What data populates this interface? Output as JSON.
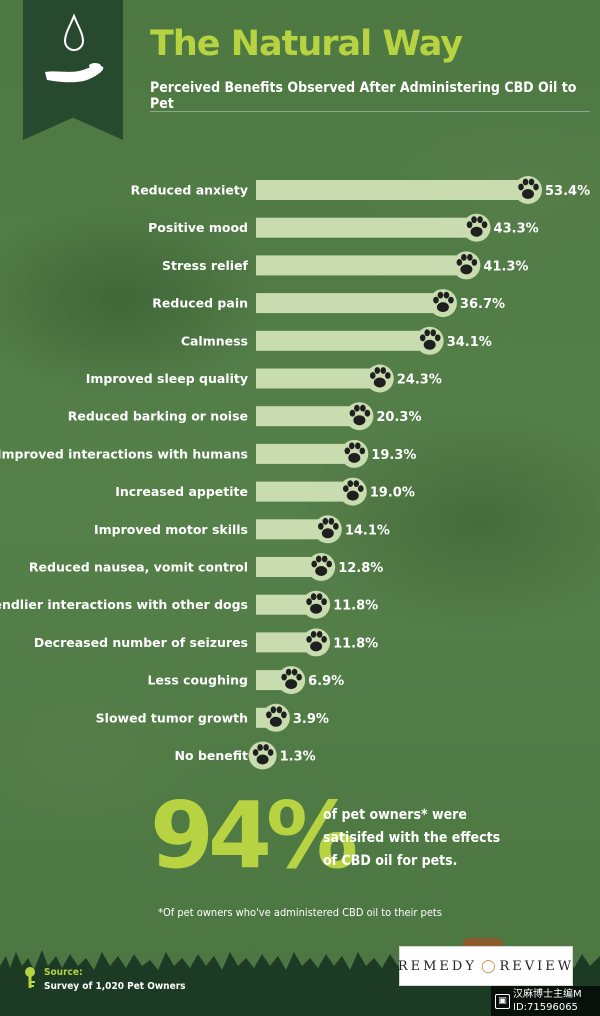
{
  "header": {
    "title": "The Natural Way",
    "subtitle": "Perceived Benefits Observed After Administering CBD Oil to Pet"
  },
  "chart_data": {
    "type": "bar",
    "orientation": "horizontal",
    "categories": [
      "Reduced anxiety",
      "Positive mood",
      "Stress relief",
      "Reduced pain",
      "Calmness",
      "Improved sleep quality",
      "Reduced barking or noise",
      "Improved interactions with humans",
      "Increased appetite",
      "Improved motor skills",
      "Reduced nausea, vomit control",
      "Friendlier interactions with other dogs",
      "Decreased number of seizures",
      "Less coughing",
      "Slowed tumor growth",
      "No benefit"
    ],
    "values": [
      53.4,
      43.3,
      41.3,
      36.7,
      34.1,
      24.3,
      20.3,
      19.3,
      19.0,
      14.1,
      12.8,
      11.8,
      11.8,
      6.9,
      3.9,
      1.3
    ],
    "value_labels": [
      "53.4%",
      "43.3%",
      "41.3%",
      "36.7%",
      "34.1%",
      "24.3%",
      "20.3%",
      "19.3%",
      "19.0%",
      "14.1%",
      "12.8%",
      "11.8%",
      "11.8%",
      "6.9%",
      "3.9%",
      "1.3%"
    ],
    "xlim": [
      0,
      53.4
    ],
    "grid": false,
    "legend": "none",
    "bar_color": "#c8dcb0",
    "marker": "paw-icon"
  },
  "stat": {
    "value": "94%",
    "text": "of pet owners* were satisifed with the effects of CBD oil for pets."
  },
  "footnote": "*Of pet owners who've administered CBD oil to their pets",
  "source": {
    "label": "Source:",
    "text": "Survey of 1,020 Pet Owners"
  },
  "brand": {
    "left": "REMEDY",
    "right": "REVIEW"
  },
  "watermark": {
    "line1": "汉麻博士主编M",
    "line2": "ID:71596065"
  },
  "colors": {
    "accent": "#b7d342",
    "background": "#4f7a43",
    "banner": "#274a2f",
    "bar": "#c8dcb0",
    "paw": "#1f1f1f"
  },
  "icons": [
    "water-drop-icon",
    "hand-icon",
    "paw-icon",
    "key-icon",
    "drop-logo-icon"
  ]
}
